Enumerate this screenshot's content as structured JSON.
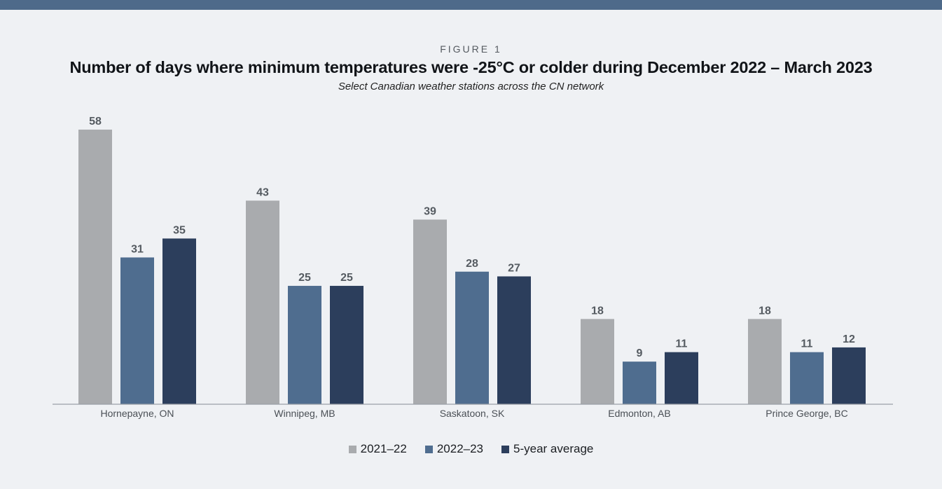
{
  "figure_label": "FIGURE 1",
  "title": "Number of days where minimum temperatures were -25°C or colder during December 2022 – March 2023",
  "subtitle": "Select Canadian weather stations across the CN network",
  "colors": {
    "band": "#4e6a8a",
    "axis": "#9aa0a6",
    "label": "#555b61",
    "series_1": "#a9abae",
    "series_2": "#4f6d8f",
    "series_3": "#2c3e5c"
  },
  "chart_data": {
    "type": "bar",
    "title": "Number of days where minimum temperatures were -25°C or colder during December 2022 – March 2023",
    "subtitle": "Select Canadian weather stations across the CN network",
    "categories": [
      "Hornepayne, ON",
      "Winnipeg, MB",
      "Saskatoon, SK",
      "Edmonton, AB",
      "Prince George, BC"
    ],
    "series": [
      {
        "name": "2021–22",
        "values": [
          58,
          43,
          39,
          18,
          18
        ]
      },
      {
        "name": "2022–23",
        "values": [
          31,
          25,
          28,
          9,
          11
        ]
      },
      {
        "name": "5-year average",
        "values": [
          35,
          25,
          27,
          11,
          12
        ]
      }
    ],
    "ylim": [
      0,
      58
    ],
    "grid": false,
    "data_labels": true,
    "legend_position": "bottom",
    "xlabel": "",
    "ylabel": ""
  }
}
